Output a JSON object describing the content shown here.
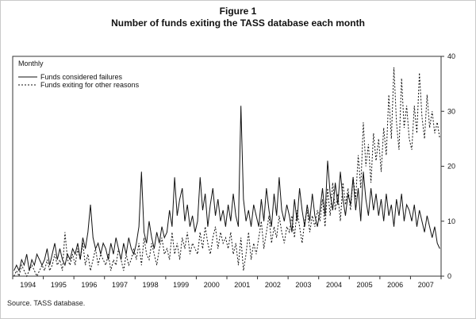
{
  "title": {
    "line1": "Figure 1",
    "line2": "Number of funds exiting the TASS database each month"
  },
  "source": "Source. TASS database.",
  "chart_data": {
    "type": "line",
    "frequency_label": "Monthly",
    "x_tick_labels": [
      "1994",
      "1995",
      "1996",
      "1997",
      "1998",
      "1999",
      "2000",
      "2001",
      "2002",
      "2003",
      "2004",
      "2005",
      "2006",
      "2007"
    ],
    "y_ticks": [
      0,
      10,
      20,
      30,
      40
    ],
    "ylim": [
      0,
      40
    ],
    "legend_position": "top-left",
    "grid": false,
    "series": [
      {
        "name": "Funds considered failures",
        "style": "solid",
        "color": "#111111",
        "values": [
          1,
          2,
          1,
          3,
          2,
          4,
          1,
          3,
          2,
          4,
          3,
          2,
          3,
          5,
          2,
          4,
          6,
          3,
          5,
          3,
          2,
          4,
          3,
          5,
          4,
          6,
          3,
          7,
          5,
          8,
          13,
          7,
          5,
          6,
          4,
          6,
          5,
          3,
          6,
          4,
          7,
          5,
          3,
          6,
          4,
          7,
          5,
          4,
          6,
          9,
          19,
          8,
          6,
          10,
          7,
          5,
          8,
          6,
          9,
          7,
          8,
          12,
          9,
          18,
          11,
          14,
          16,
          10,
          13,
          9,
          11,
          8,
          10,
          18,
          12,
          15,
          9,
          13,
          16,
          11,
          14,
          10,
          12,
          9,
          13,
          10,
          15,
          11,
          9,
          31,
          14,
          10,
          12,
          9,
          13,
          11,
          9,
          14,
          10,
          16,
          12,
          9,
          15,
          11,
          18,
          12,
          10,
          13,
          11,
          8,
          14,
          10,
          16,
          12,
          9,
          13,
          10,
          15,
          11,
          9,
          12,
          16,
          11,
          21,
          15,
          12,
          17,
          13,
          19,
          14,
          11,
          15,
          13,
          18,
          12,
          16,
          10,
          19,
          14,
          11,
          16,
          12,
          15,
          11,
          14,
          10,
          15,
          11,
          13,
          9,
          14,
          11,
          15,
          10,
          13,
          12,
          10,
          13,
          9,
          12,
          10,
          8,
          11,
          9,
          7,
          9,
          6,
          5
        ]
      },
      {
        "name": "Funds exiting for other reasons",
        "style": "dotted",
        "color": "#111111",
        "values": [
          0,
          1,
          0,
          2,
          1,
          0,
          1,
          2,
          1,
          0,
          1,
          2,
          1,
          3,
          1,
          2,
          4,
          2,
          3,
          1,
          8,
          3,
          2,
          4,
          2,
          5,
          3,
          6,
          2,
          4,
          1,
          3,
          5,
          2,
          4,
          3,
          2,
          4,
          1,
          3,
          2,
          5,
          3,
          1,
          4,
          2,
          3,
          5,
          3,
          6,
          2,
          7,
          4,
          3,
          6,
          4,
          2,
          5,
          7,
          4,
          5,
          3,
          8,
          4,
          6,
          3,
          7,
          5,
          8,
          4,
          6,
          5,
          4,
          8,
          5,
          9,
          6,
          4,
          7,
          9,
          5,
          8,
          6,
          7,
          5,
          8,
          4,
          6,
          2,
          7,
          1,
          4,
          8,
          3,
          6,
          4,
          7,
          10,
          5,
          8,
          11,
          6,
          9,
          7,
          11,
          8,
          6,
          9,
          8,
          11,
          7,
          12,
          9,
          6,
          10,
          12,
          8,
          11,
          9,
          12,
          10,
          14,
          9,
          16,
          11,
          17,
          12,
          15,
          10,
          17,
          13,
          16,
          12,
          18,
          14,
          22,
          16,
          28,
          20,
          24,
          17,
          26,
          21,
          25,
          19,
          27,
          22,
          33,
          25,
          38,
          28,
          23,
          36,
          27,
          31,
          25,
          23,
          31,
          26,
          37,
          29,
          25,
          33,
          27,
          30,
          26,
          28,
          25
        ]
      }
    ]
  }
}
